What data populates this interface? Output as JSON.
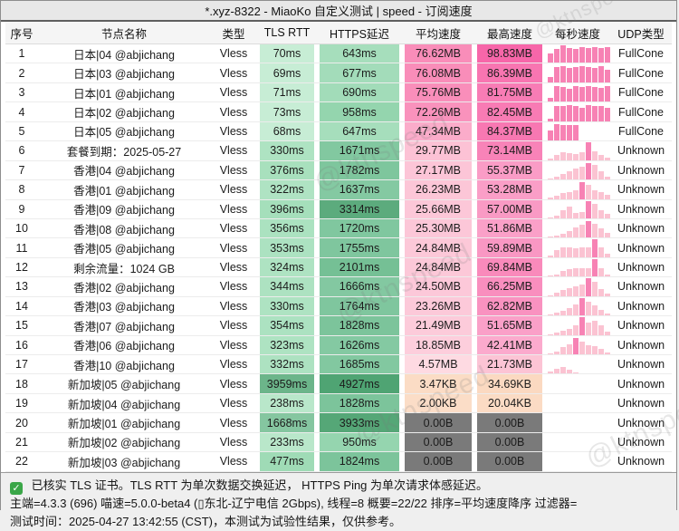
{
  "window": {
    "title": "*.xyz-8322 - MiaoKo 自定义测试 | speed - 订阅速度"
  },
  "watermark": {
    "text": "@ktnspeed"
  },
  "table": {
    "headers": [
      "序号",
      "节点名称",
      "类型",
      "TLS RTT",
      "HTTPS延迟",
      "平均速度",
      "最高速度",
      "每秒速度",
      "UDP类型"
    ],
    "rows": [
      {
        "index": "1",
        "name": "日本|04 @abjichang",
        "type": "Vless",
        "tls": "70ms",
        "tls_bg": "#c7edd5",
        "https": "643ms",
        "https_bg": "#a6debc",
        "avg": "76.62MB",
        "avg_bg": "#f98db9",
        "max": "98.83MB",
        "max_bg": "#f766a9",
        "udp": "FullCone",
        "spark": {
          "color": "#f782b4",
          "bars": [
            55,
            80,
            100,
            85,
            82,
            88,
            84,
            88,
            85,
            90
          ]
        }
      },
      {
        "index": "2",
        "name": "日本|03 @abjichang",
        "type": "Vless",
        "tls": "69ms",
        "tls_bg": "#c7edd5",
        "https": "677ms",
        "https_bg": "#a3dcba",
        "avg": "76.08MB",
        "avg_bg": "#f98db9",
        "max": "86.39MB",
        "max_bg": "#f875b1",
        "udp": "FullCone",
        "spark": {
          "color": "#f782b4",
          "bars": [
            30,
            88,
            92,
            82,
            86,
            90,
            86,
            82,
            92,
            72
          ]
        }
      },
      {
        "index": "3",
        "name": "日本|01 @abjichang",
        "type": "Vless",
        "tls": "71ms",
        "tls_bg": "#c7edd5",
        "https": "690ms",
        "https_bg": "#a2dcb9",
        "avg": "75.76MB",
        "avg_bg": "#f98eba",
        "max": "81.75MB",
        "max_bg": "#f87cb5",
        "udp": "FullCone",
        "spark": {
          "color": "#f782b4",
          "bars": [
            20,
            90,
            85,
            72,
            88,
            85,
            90,
            85,
            80,
            88
          ]
        }
      },
      {
        "index": "4",
        "name": "日本|02 @abjichang",
        "type": "Vless",
        "tls": "73ms",
        "tls_bg": "#c7edd5",
        "https": "958ms",
        "https_bg": "#94d5ae",
        "avg": "72.26MB",
        "avg_bg": "#f992bc",
        "max": "82.45MB",
        "max_bg": "#f87bb4",
        "udp": "FullCone",
        "spark": {
          "color": "#f782b4",
          "bars": [
            15,
            88,
            85,
            90,
            85,
            75,
            90,
            85,
            88,
            78
          ]
        }
      },
      {
        "index": "5",
        "name": "日本|05 @abjichang",
        "type": "Vless",
        "tls": "68ms",
        "tls_bg": "#c7edd5",
        "https": "647ms",
        "https_bg": "#a6debc",
        "avg": "47.34MB",
        "avg_bg": "#fbacca",
        "max": "84.37MB",
        "max_bg": "#f878b2",
        "udp": "FullCone",
        "spark": {
          "color": "#f782b4",
          "bars": [
            60,
            95,
            90,
            86,
            90,
            0,
            0,
            0,
            0,
            0
          ]
        }
      },
      {
        "index": "6",
        "name": "套餐到期：2025-05-27",
        "type": "Vless",
        "tls": "330ms",
        "tls_bg": "#aee3c2",
        "https": "1671ms",
        "https_bg": "#82c8a0",
        "avg": "29.77MB",
        "avg_bg": "#fcc2d5",
        "max": "73.14MB",
        "max_bg": "#f883b8",
        "udp": "Unknown",
        "spark": {
          "color": "#fbc3d2",
          "peak_color": "#f782b4",
          "bars": [
            10,
            30,
            45,
            40,
            34,
            44,
            100,
            48,
            28,
            16
          ]
        }
      },
      {
        "index": "7",
        "name": "香港|04 @abjichang",
        "type": "Vless",
        "tls": "376ms",
        "tls_bg": "#a8e0bd",
        "https": "1782ms",
        "https_bg": "#7ec69d",
        "avg": "27.17MB",
        "avg_bg": "#fcc5d7",
        "max": "55.37MB",
        "max_bg": "#fa9cc6",
        "udp": "Unknown",
        "spark": {
          "color": "#fbc3d2",
          "peak_color": "#f782b4",
          "bars": [
            6,
            14,
            30,
            48,
            60,
            70,
            95,
            85,
            48,
            18
          ]
        }
      },
      {
        "index": "8",
        "name": "香港|01 @abjichang",
        "type": "Vless",
        "tls": "322ms",
        "tls_bg": "#afe3c3",
        "https": "1637ms",
        "https_bg": "#84c9a2",
        "avg": "26.23MB",
        "avg_bg": "#fcc6d7",
        "max": "53.28MB",
        "max_bg": "#fa9ec7",
        "udp": "Unknown",
        "spark": {
          "color": "#fbc3d2",
          "peak_color": "#f782b4",
          "bars": [
            8,
            20,
            34,
            40,
            50,
            95,
            78,
            48,
            38,
            24
          ]
        }
      },
      {
        "index": "9",
        "name": "香港|09 @abjichang",
        "type": "Vless",
        "tls": "396ms",
        "tls_bg": "#a5dfbb",
        "https": "3314ms",
        "https_bg": "#5cab7d",
        "avg": "25.66MB",
        "avg_bg": "#fcc7d8",
        "max": "57.00MB",
        "max_bg": "#f99ac4",
        "udp": "Unknown",
        "spark": {
          "color": "#fbc3d2",
          "peak_color": "#f782b4",
          "bars": [
            6,
            16,
            48,
            68,
            30,
            36,
            95,
            80,
            48,
            26
          ]
        }
      },
      {
        "index": "10",
        "name": "香港|08 @abjichang",
        "type": "Vless",
        "tls": "356ms",
        "tls_bg": "#abe2c0",
        "https": "1720ms",
        "https_bg": "#80c79f",
        "avg": "25.30MB",
        "avg_bg": "#fcc7d8",
        "max": "51.86MB",
        "max_bg": "#faa0c8",
        "udp": "Unknown",
        "spark": {
          "color": "#fbc3d2",
          "peak_color": "#f782b4",
          "bars": [
            5,
            10,
            22,
            40,
            58,
            72,
            95,
            78,
            55,
            26
          ]
        }
      },
      {
        "index": "11",
        "name": "香港|05 @abjichang",
        "type": "Vless",
        "tls": "353ms",
        "tls_bg": "#ace2c1",
        "https": "1755ms",
        "https_bg": "#7fc69e",
        "avg": "24.84MB",
        "avg_bg": "#fcc8d8",
        "max": "59.89MB",
        "max_bg": "#f997c3",
        "udp": "Unknown",
        "spark": {
          "color": "#fbc3d2",
          "peak_color": "#f782b4",
          "bars": [
            8,
            42,
            58,
            54,
            52,
            56,
            58,
            100,
            56,
            20
          ]
        }
      },
      {
        "index": "12",
        "name": "剩余流量：1024 GB",
        "type": "Vless",
        "tls": "324ms",
        "tls_bg": "#aee3c2",
        "https": "2101ms",
        "https_bg": "#75c095",
        "avg": "24.84MB",
        "avg_bg": "#fcc8d8",
        "max": "69.84MB",
        "max_bg": "#f98abb",
        "udp": "Unknown",
        "spark": {
          "color": "#fbc3d2",
          "peak_color": "#f782b4",
          "bars": [
            5,
            12,
            30,
            44,
            46,
            50,
            46,
            100,
            48,
            14
          ]
        }
      },
      {
        "index": "13",
        "name": "香港|02 @abjichang",
        "type": "Vless",
        "tls": "344ms",
        "tls_bg": "#ade2c1",
        "https": "1666ms",
        "https_bg": "#83c8a1",
        "avg": "24.50MB",
        "avg_bg": "#fcc8d9",
        "max": "66.25MB",
        "max_bg": "#f98ebe",
        "udp": "Unknown",
        "spark": {
          "color": "#fbc3d2",
          "peak_color": "#f782b4",
          "bars": [
            6,
            18,
            34,
            46,
            54,
            64,
            100,
            80,
            40,
            16
          ]
        }
      },
      {
        "index": "14",
        "name": "香港|03 @abjichang",
        "type": "Vless",
        "tls": "330ms",
        "tls_bg": "#aee3c2",
        "https": "1764ms",
        "https_bg": "#7fc69e",
        "avg": "23.26MB",
        "avg_bg": "#fcc9d9",
        "max": "62.82MB",
        "max_bg": "#f992c0",
        "udp": "Unknown",
        "spark": {
          "color": "#fbc3d2",
          "peak_color": "#f782b4",
          "bars": [
            6,
            14,
            28,
            44,
            62,
            100,
            78,
            56,
            30,
            12
          ]
        }
      },
      {
        "index": "15",
        "name": "香港|07 @abjichang",
        "type": "Vless",
        "tls": "354ms",
        "tls_bg": "#ace2c1",
        "https": "1828ms",
        "https_bg": "#7cc49b",
        "avg": "21.49MB",
        "avg_bg": "#fccbda",
        "max": "51.65MB",
        "max_bg": "#faa0c8",
        "udp": "Unknown",
        "spark": {
          "color": "#fbc3d2",
          "peak_color": "#f782b4",
          "bars": [
            5,
            12,
            22,
            36,
            52,
            100,
            72,
            78,
            55,
            20
          ]
        }
      },
      {
        "index": "16",
        "name": "香港|06 @abjichang",
        "type": "Vless",
        "tls": "323ms",
        "tls_bg": "#aee3c2",
        "https": "1626ms",
        "https_bg": "#84c9a2",
        "avg": "18.85MB",
        "avg_bg": "#fdcedc",
        "max": "42.41MB",
        "max_bg": "#fbaacd",
        "udp": "Unknown",
        "spark": {
          "color": "#fbc3d2",
          "peak_color": "#f782b4",
          "bars": [
            5,
            18,
            42,
            55,
            92,
            70,
            52,
            44,
            30,
            10
          ]
        }
      },
      {
        "index": "17",
        "name": "香港|10 @abjichang",
        "type": "Vless",
        "tls": "332ms",
        "tls_bg": "#ade2c1",
        "https": "1685ms",
        "https_bg": "#82c8a0",
        "avg": "4.57MB",
        "avg_bg": "#fedae2",
        "max": "21.73MB",
        "max_bg": "#fcc4d5",
        "udp": "Unknown",
        "spark": {
          "color": "#fbc3d2",
          "bars": [
            12,
            26,
            40,
            22,
            10,
            0,
            0,
            0,
            0,
            0
          ]
        }
      },
      {
        "index": "18",
        "name": "新加坡|05 @abjichang",
        "type": "Vless",
        "tls": "3959ms",
        "tls_bg": "#6cb58a",
        "https": "4927ms",
        "https_bg": "#4fa473",
        "avg": "3.47KB",
        "avg_bg": "#fbdcc5",
        "max": "34.69KB",
        "max_bg": "#fbd9c1",
        "udp": "Unknown",
        "spark": {
          "color": "#fbc3d2",
          "bars": [
            0,
            0,
            0,
            0,
            0,
            0,
            0,
            0,
            0,
            0
          ]
        }
      },
      {
        "index": "19",
        "name": "新加坡|04 @abjichang",
        "type": "Vless",
        "tls": "238ms",
        "tls_bg": "#b9e7ca",
        "https": "1828ms",
        "https_bg": "#7cc49b",
        "avg": "2.00KB",
        "avg_bg": "#fbddc7",
        "max": "20.04KB",
        "max_bg": "#fbdbc4",
        "udp": "Unknown",
        "spark": {
          "color": "#fbc3d2",
          "bars": [
            0,
            0,
            0,
            0,
            0,
            0,
            0,
            0,
            0,
            0
          ]
        }
      },
      {
        "index": "20",
        "name": "新加坡|01 @abjichang",
        "type": "Vless",
        "tls": "1668ms",
        "tls_bg": "#85c6a0",
        "https": "3933ms",
        "https_bg": "#55a777",
        "avg": "0.00B",
        "avg_bg": "#7a7a7a",
        "max": "0.00B",
        "max_bg": "#7a7a7a",
        "udp": "Unknown",
        "spark": {
          "color": "#fbc3d2",
          "bars": [
            0,
            0,
            0,
            0,
            0,
            0,
            0,
            0,
            0,
            0
          ]
        }
      },
      {
        "index": "21",
        "name": "新加坡|02 @abjichang",
        "type": "Vless",
        "tls": "233ms",
        "tls_bg": "#b9e7ca",
        "https": "950ms",
        "https_bg": "#95d5af",
        "avg": "0.00B",
        "avg_bg": "#7a7a7a",
        "max": "0.00B",
        "max_bg": "#7a7a7a",
        "udp": "Unknown",
        "spark": {
          "color": "#fbc3d2",
          "bars": [
            0,
            0,
            0,
            0,
            0,
            0,
            0,
            0,
            0,
            0
          ]
        }
      },
      {
        "index": "22",
        "name": "新加坡|03 @abjichang",
        "type": "Vless",
        "tls": "477ms",
        "tls_bg": "#9fdbb6",
        "https": "1824ms",
        "https_bg": "#7cc49b",
        "avg": "0.00B",
        "avg_bg": "#7a7a7a",
        "max": "0.00B",
        "max_bg": "#7a7a7a",
        "udp": "Unknown",
        "spark": {
          "color": "#fbc3d2",
          "bars": [
            0,
            0,
            0,
            0,
            0,
            0,
            0,
            0,
            0,
            0
          ]
        }
      }
    ]
  },
  "footer": {
    "check_icon": "✓",
    "line1": "已核实 TLS 证书。TLS RTT 为单次数据交换延迟， HTTPS Ping 为单次请求体感延迟。",
    "line2": "主端=4.3.3 (696) 喵速=5.0.0-beta4 (▯东北-辽宁电信 2Gbps), 线程=8 概要=22/22 排序=平均速度降序 过滤器=",
    "line3": "测试时间：2025-04-27 13:42:55 (CST)，本测试为试验性结果，仅供参考。"
  }
}
